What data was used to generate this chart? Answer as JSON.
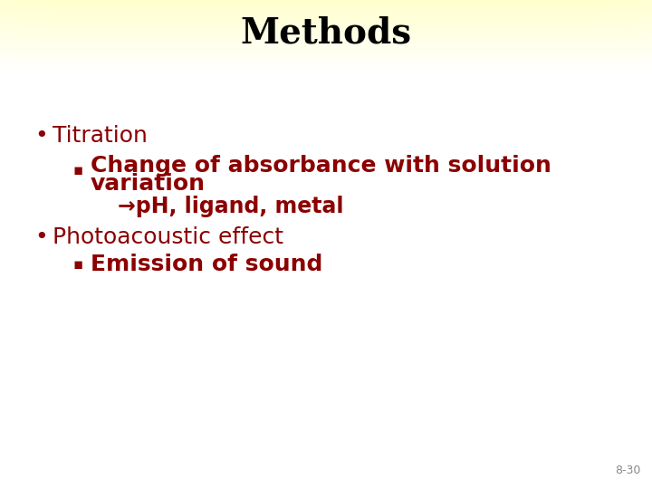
{
  "title": "Methods",
  "title_color": "#000000",
  "title_fontsize": 28,
  "title_font": "serif",
  "slide_bg": "#ffffff",
  "dark_red": "#8B0000",
  "bullet1": "Titration",
  "sub_bullet1_line1": "Change of absorbance with solution",
  "sub_bullet1_line2": "variation",
  "arrow_text": "→pH, ligand, metal",
  "bullet2": "Photoacoustic effect",
  "sub_bullet2": "Emission of sound",
  "footer": "8-30",
  "footer_color": "#888888",
  "footer_fontsize": 9,
  "bullet_fontsize": 18,
  "sub_bullet_fontsize": 18,
  "arrow_fontsize": 17
}
